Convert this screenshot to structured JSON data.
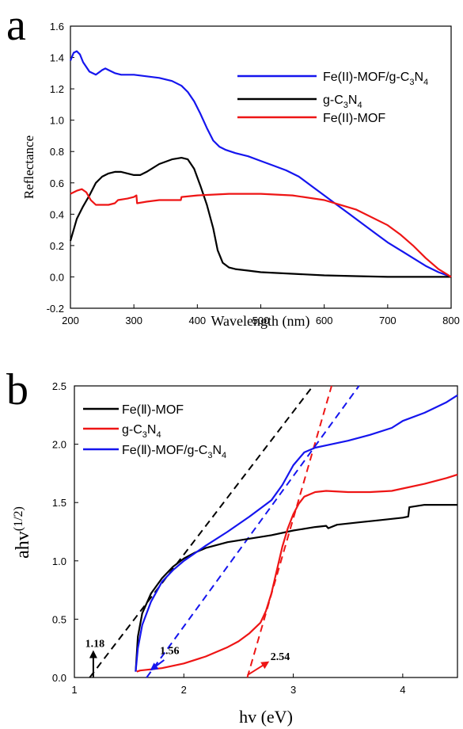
{
  "panels": [
    {
      "id": "a",
      "panel_label": "a",
      "xlabel": "Wavelength (nm)",
      "ylabel": "Reflectance",
      "xlim": [
        200,
        800
      ],
      "ylim": [
        -0.2,
        1.6
      ],
      "xticks": [
        200,
        300,
        400,
        500,
        600,
        700,
        800
      ],
      "yticks": [
        -0.2,
        0.0,
        0.2,
        0.4,
        0.6,
        0.8,
        1.0,
        1.2,
        1.4,
        1.6
      ],
      "ytick_decimals": 1,
      "legend": [
        {
          "label": "Fe(II)-MOF/g-C3N4",
          "color": "#1515ee"
        },
        {
          "label": "g-C3N4",
          "color": "#000000"
        },
        {
          "label": "Fe(II)-MOF",
          "color": "#ee1515"
        }
      ]
    },
    {
      "id": "b",
      "panel_label": "b",
      "xlabel": "hv (eV)",
      "ylabel": "ahv",
      "ylabel_sup": "(1/2)",
      "xlim": [
        1,
        4.5
      ],
      "ylim": [
        0,
        2.5
      ],
      "xticks": [
        1,
        2,
        3,
        4
      ],
      "yticks": [
        0.0,
        0.5,
        1.0,
        1.5,
        2.0,
        2.5
      ],
      "ytick_decimals": 1,
      "legend": [
        {
          "label": "Fe(Ⅱ)-MOF",
          "color": "#000000"
        },
        {
          "label": "g-C3N4",
          "color": "#ee1515"
        },
        {
          "label": "Fe(Ⅱ)-MOF/g-C3N4",
          "color": "#1515ee"
        }
      ],
      "annotations": [
        {
          "text": "1.18",
          "x": 1.18,
          "color": "#000000"
        },
        {
          "text": "1.56",
          "x": 1.56,
          "color": "#1515ee"
        },
        {
          "text": "2.54",
          "x": 2.54,
          "color": "#ee1515"
        }
      ]
    }
  ],
  "chart_data": [
    {
      "type": "line",
      "xlabel": "Wavelength (nm)",
      "ylabel": "Reflectance",
      "xlim": [
        200,
        800
      ],
      "ylim": [
        -0.2,
        1.6
      ],
      "legend_position": "top-right",
      "series": [
        {
          "name": "Fe(II)-MOF/g-C3N4",
          "color": "#1515ee",
          "x": [
            200,
            205,
            210,
            215,
            220,
            230,
            240,
            250,
            255,
            260,
            270,
            280,
            300,
            320,
            340,
            360,
            375,
            385,
            395,
            405,
            415,
            425,
            435,
            445,
            460,
            480,
            500,
            520,
            540,
            560,
            580,
            600,
            620,
            640,
            660,
            680,
            700,
            720,
            740,
            760,
            780,
            800
          ],
          "y": [
            1.38,
            1.43,
            1.44,
            1.42,
            1.37,
            1.31,
            1.29,
            1.32,
            1.33,
            1.32,
            1.3,
            1.29,
            1.29,
            1.28,
            1.27,
            1.25,
            1.22,
            1.18,
            1.12,
            1.04,
            0.95,
            0.87,
            0.83,
            0.81,
            0.79,
            0.77,
            0.74,
            0.71,
            0.68,
            0.64,
            0.58,
            0.52,
            0.46,
            0.4,
            0.34,
            0.28,
            0.22,
            0.17,
            0.12,
            0.07,
            0.03,
            0.0
          ]
        },
        {
          "name": "g-C3N4",
          "color": "#000000",
          "x": [
            200,
            210,
            220,
            230,
            240,
            250,
            260,
            270,
            280,
            290,
            300,
            310,
            320,
            340,
            360,
            375,
            385,
            395,
            405,
            415,
            425,
            432,
            440,
            450,
            460,
            480,
            500,
            550,
            600,
            650,
            700,
            750,
            800
          ],
          "y": [
            0.23,
            0.37,
            0.45,
            0.52,
            0.6,
            0.64,
            0.66,
            0.67,
            0.67,
            0.66,
            0.65,
            0.65,
            0.67,
            0.72,
            0.75,
            0.76,
            0.75,
            0.69,
            0.58,
            0.46,
            0.31,
            0.17,
            0.09,
            0.06,
            0.05,
            0.04,
            0.03,
            0.02,
            0.01,
            0.005,
            0.0,
            0.0,
            0.0
          ]
        },
        {
          "name": "Fe(II)-MOF",
          "color": "#ee1515",
          "x": [
            200,
            210,
            218,
            225,
            232,
            240,
            250,
            260,
            270,
            275,
            290,
            300,
            304,
            305,
            320,
            340,
            360,
            374,
            375,
            400,
            450,
            500,
            550,
            600,
            650,
            700,
            720,
            740,
            760,
            780,
            800
          ],
          "y": [
            0.53,
            0.55,
            0.56,
            0.54,
            0.49,
            0.46,
            0.46,
            0.46,
            0.47,
            0.49,
            0.5,
            0.51,
            0.52,
            0.47,
            0.48,
            0.49,
            0.49,
            0.49,
            0.51,
            0.52,
            0.53,
            0.53,
            0.52,
            0.49,
            0.43,
            0.33,
            0.27,
            0.2,
            0.12,
            0.05,
            0.0
          ]
        }
      ]
    },
    {
      "type": "line",
      "xlabel": "hv (eV)",
      "ylabel": "ahv",
      "xlim": [
        1,
        4.5
      ],
      "ylim": [
        0,
        2.5
      ],
      "legend_position": "top-left",
      "series": [
        {
          "name": "Fe(Ⅱ)-MOF",
          "color": "#000000",
          "x": [
            1.56,
            1.58,
            1.62,
            1.7,
            1.8,
            1.9,
            2.0,
            2.1,
            2.2,
            2.4,
            2.6,
            2.8,
            3.0,
            3.2,
            3.3,
            3.32,
            3.4,
            3.6,
            3.8,
            4.0,
            4.05,
            4.06,
            4.2,
            4.4,
            4.5
          ],
          "y": [
            0.05,
            0.35,
            0.55,
            0.72,
            0.85,
            0.95,
            1.02,
            1.07,
            1.11,
            1.16,
            1.19,
            1.22,
            1.26,
            1.29,
            1.3,
            1.28,
            1.31,
            1.33,
            1.35,
            1.37,
            1.38,
            1.46,
            1.48,
            1.48,
            1.48
          ]
        },
        {
          "name": "g-C3N4",
          "color": "#ee1515",
          "x": [
            1.57,
            1.6,
            1.8,
            2.0,
            2.2,
            2.4,
            2.5,
            2.6,
            2.7,
            2.75,
            2.8,
            2.85,
            2.9,
            2.95,
            3.0,
            3.05,
            3.1,
            3.2,
            3.3,
            3.5,
            3.7,
            3.9,
            4.0,
            4.2,
            4.4,
            4.5
          ],
          "y": [
            0.05,
            0.06,
            0.08,
            0.12,
            0.18,
            0.26,
            0.31,
            0.38,
            0.47,
            0.57,
            0.72,
            0.92,
            1.12,
            1.28,
            1.4,
            1.49,
            1.55,
            1.59,
            1.6,
            1.59,
            1.59,
            1.6,
            1.62,
            1.66,
            1.71,
            1.74
          ]
        },
        {
          "name": "Fe(Ⅱ)-MOF/g-C3N4",
          "color": "#1515ee",
          "x": [
            1.56,
            1.58,
            1.62,
            1.7,
            1.8,
            1.9,
            2.0,
            2.2,
            2.4,
            2.6,
            2.8,
            2.9,
            3.0,
            3.1,
            3.2,
            3.3,
            3.5,
            3.7,
            3.9,
            4.0,
            4.2,
            4.4,
            4.5
          ],
          "y": [
            0.05,
            0.25,
            0.45,
            0.65,
            0.82,
            0.92,
            1.0,
            1.13,
            1.25,
            1.38,
            1.52,
            1.65,
            1.82,
            1.93,
            1.97,
            1.99,
            2.03,
            2.08,
            2.14,
            2.2,
            2.27,
            2.36,
            2.42
          ]
        }
      ],
      "dashed_fits": [
        {
          "series": "Fe(Ⅱ)-MOF",
          "color": "#000000",
          "x": [
            1.14,
            3.18
          ],
          "y": [
            0.0,
            2.5
          ]
        },
        {
          "series": "g-C3N4",
          "color": "#ee1515",
          "x": [
            2.58,
            3.35
          ],
          "y": [
            0.0,
            2.5
          ]
        },
        {
          "series": "Fe(Ⅱ)-MOF/g-C3N4",
          "color": "#1515ee",
          "x": [
            1.66,
            3.6
          ],
          "y": [
            0.0,
            2.5
          ]
        }
      ],
      "annotations": [
        {
          "text": "1.18",
          "x": 1.18
        },
        {
          "text": "1.56",
          "x": 1.56
        },
        {
          "text": "2.54",
          "x": 2.54
        }
      ]
    }
  ]
}
